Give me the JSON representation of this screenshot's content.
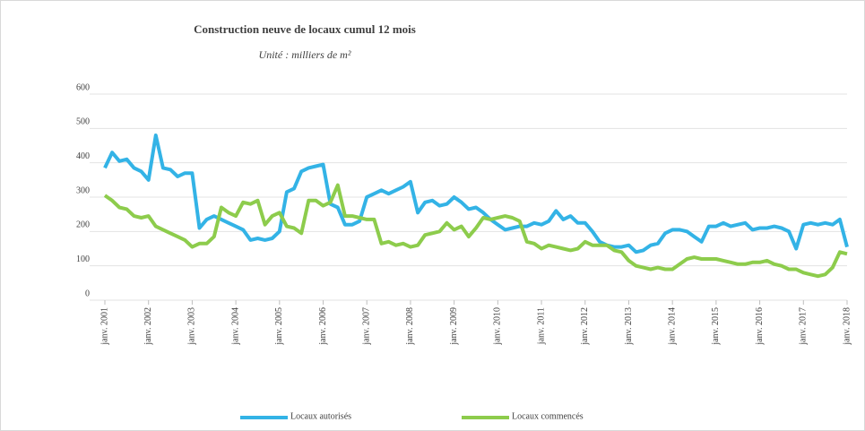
{
  "chart_data": {
    "type": "line",
    "title": "Construction neuve de locaux cumul 12 mois",
    "subtitle": "Unité : milliers de m²",
    "categories": [
      "janv. 2001",
      null,
      null,
      null,
      null,
      null,
      "janv. 2002",
      null,
      null,
      null,
      null,
      null,
      "janv. 2003",
      null,
      null,
      null,
      null,
      null,
      "janv. 2004",
      null,
      null,
      null,
      null,
      null,
      "janv. 2005",
      null,
      null,
      null,
      null,
      null,
      "janv. 2006",
      null,
      null,
      null,
      null,
      null,
      "janv. 2007",
      null,
      null,
      null,
      null,
      null,
      "janv. 2008",
      null,
      null,
      null,
      null,
      null,
      "janv. 2009",
      null,
      null,
      null,
      null,
      null,
      "janv. 2010",
      null,
      null,
      null,
      null,
      null,
      "janv. 2011",
      null,
      null,
      null,
      null,
      null,
      "janv. 2012",
      null,
      null,
      null,
      null,
      null,
      "janv. 2013",
      null,
      null,
      null,
      null,
      null,
      "janv. 2014",
      null,
      null,
      null,
      null,
      null,
      "janv. 2015",
      null,
      null,
      null,
      null,
      null,
      "janv. 2016",
      null,
      null,
      null,
      null,
      null,
      "janv. 2017",
      null,
      null,
      null,
      null,
      null,
      "janv. 2018"
    ],
    "series": [
      {
        "name": "Locaux autorisés",
        "color": "#33b3e6",
        "values": [
          385,
          430,
          405,
          410,
          385,
          375,
          350,
          480,
          385,
          380,
          360,
          370,
          370,
          210,
          235,
          245,
          235,
          225,
          215,
          205,
          175,
          180,
          175,
          180,
          200,
          315,
          325,
          375,
          385,
          390,
          395,
          280,
          270,
          220,
          220,
          230,
          300,
          310,
          320,
          310,
          320,
          330,
          345,
          255,
          285,
          290,
          275,
          280,
          300,
          285,
          265,
          270,
          255,
          235,
          220,
          205,
          210,
          215,
          215,
          225,
          220,
          230,
          260,
          235,
          245,
          225,
          225,
          200,
          170,
          160,
          155,
          155,
          160,
          140,
          145,
          160,
          165,
          195,
          205,
          205,
          200,
          185,
          170,
          215,
          215,
          225,
          215,
          220,
          225,
          205,
          210,
          210,
          215,
          210,
          200,
          150,
          220,
          225,
          220,
          225,
          220,
          235,
          155
        ]
      },
      {
        "name": "Locaux commencés",
        "color": "#8dcc4c",
        "values": [
          305,
          290,
          270,
          265,
          245,
          240,
          245,
          215,
          205,
          195,
          185,
          175,
          155,
          165,
          165,
          185,
          270,
          255,
          245,
          285,
          280,
          290,
          220,
          245,
          255,
          215,
          210,
          195,
          290,
          290,
          275,
          285,
          335,
          245,
          245,
          240,
          235,
          235,
          165,
          170,
          160,
          165,
          155,
          160,
          190,
          195,
          200,
          225,
          205,
          215,
          185,
          210,
          240,
          235,
          240,
          245,
          240,
          230,
          170,
          165,
          150,
          160,
          155,
          150,
          145,
          150,
          170,
          160,
          160,
          160,
          145,
          140,
          115,
          100,
          95,
          90,
          95,
          90,
          90,
          105,
          120,
          125,
          120,
          120,
          120,
          115,
          110,
          105,
          105,
          110,
          110,
          115,
          105,
          100,
          90,
          90,
          80,
          75,
          70,
          75,
          95,
          140,
          135
        ]
      }
    ],
    "ylim": [
      0,
      600
    ],
    "yticks": [
      0,
      100,
      200,
      300,
      400,
      500,
      600
    ],
    "grid": true,
    "legend": "bottom"
  }
}
